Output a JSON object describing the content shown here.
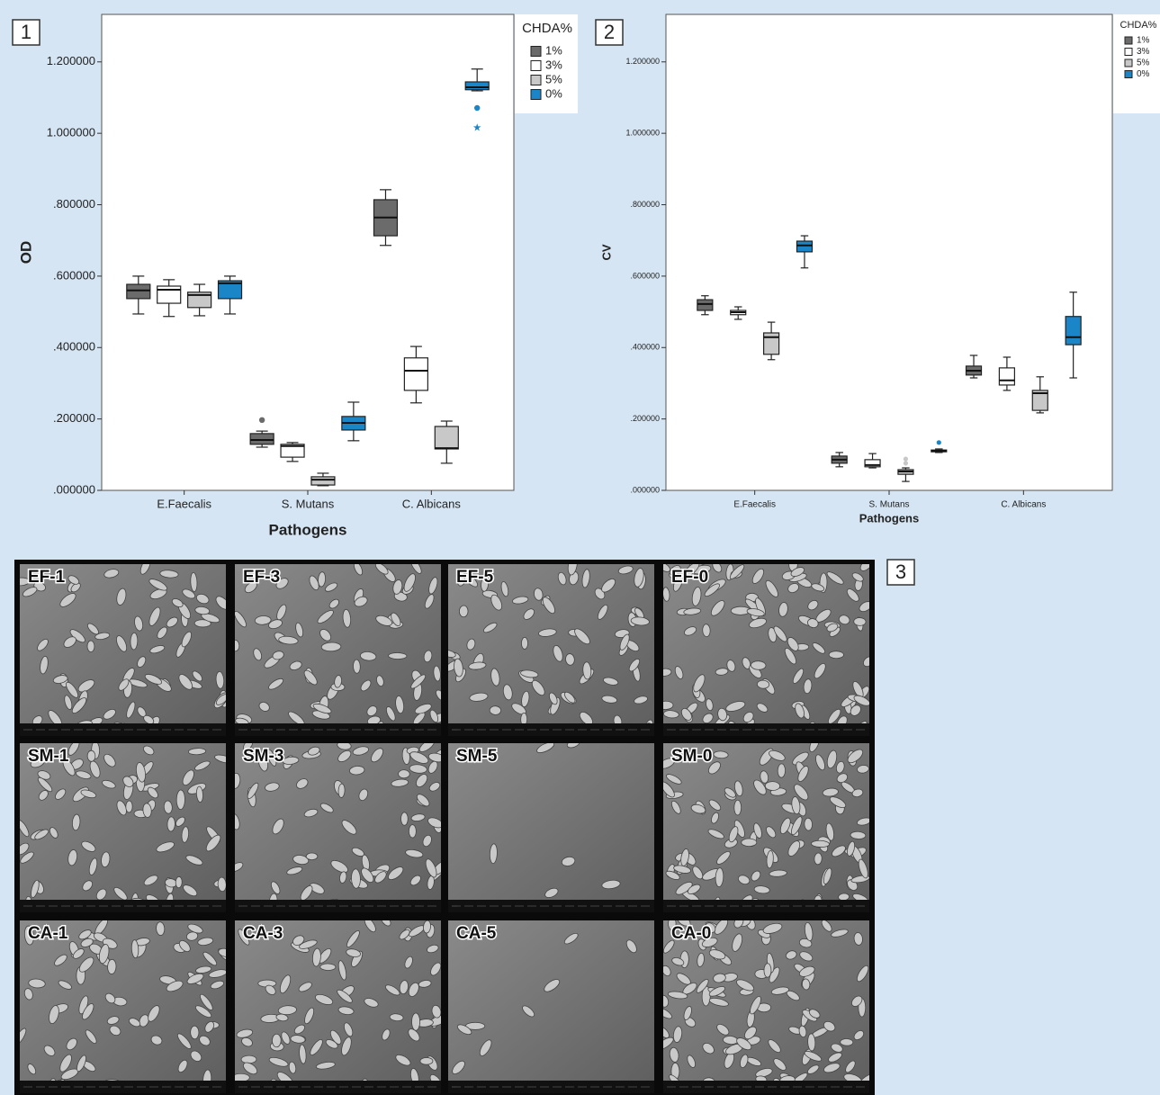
{
  "panels": [
    "1",
    "2",
    "3"
  ],
  "chart_data": [
    {
      "type": "box",
      "y_label": "OD",
      "x_label": "Pathogens",
      "legend_title": "CHDA%",
      "categories": [
        "E.Faecalis",
        "S. Mutans",
        "C. Albicans"
      ],
      "ylim": [
        0,
        1.333
      ],
      "yticks": [
        {
          "value": 0,
          "label": ".000000"
        },
        {
          "value": 0.2,
          "label": ".200000"
        },
        {
          "value": 0.4,
          "label": ".400000"
        },
        {
          "value": 0.6,
          "label": ".600000"
        },
        {
          "value": 0.8,
          "label": ".800000"
        },
        {
          "value": 1.0,
          "label": "1.000000"
        },
        {
          "value": 1.2,
          "label": "1.200000"
        }
      ],
      "series": [
        {
          "name": "1%",
          "color": "#6b6b6b",
          "boxes": [
            {
              "low": 0.494,
              "q1": 0.537,
              "median": 0.56,
              "q3": 0.577,
              "high": 0.6
            },
            {
              "low": 0.121,
              "q1": 0.129,
              "median": 0.141,
              "q3": 0.159,
              "high": 0.166,
              "outliers": [
                0.197
              ]
            },
            {
              "low": 0.686,
              "q1": 0.713,
              "median": 0.764,
              "q3": 0.814,
              "high": 0.842
            }
          ]
        },
        {
          "name": "3%",
          "color": "#ffffff",
          "boxes": [
            {
              "low": 0.487,
              "q1": 0.524,
              "median": 0.562,
              "q3": 0.572,
              "high": 0.59
            },
            {
              "low": 0.081,
              "q1": 0.093,
              "median": 0.124,
              "q3": 0.129,
              "high": 0.134
            },
            {
              "low": 0.245,
              "q1": 0.28,
              "median": 0.335,
              "q3": 0.371,
              "high": 0.403
            }
          ]
        },
        {
          "name": "5%",
          "color": "#c8c8c8",
          "boxes": [
            {
              "low": 0.489,
              "q1": 0.512,
              "median": 0.547,
              "q3": 0.555,
              "high": 0.577
            },
            {
              "low": 0.013,
              "q1": 0.015,
              "median": 0.03,
              "q3": 0.038,
              "high": 0.048
            },
            {
              "low": 0.076,
              "q1": 0.116,
              "median": 0.118,
              "q3": 0.179,
              "high": 0.194
            }
          ]
        },
        {
          "name": "0%",
          "color": "#1a86c8",
          "boxes": [
            {
              "low": 0.494,
              "q1": 0.537,
              "median": 0.58,
              "q3": 0.587,
              "high": 0.6
            },
            {
              "low": 0.139,
              "q1": 0.169,
              "median": 0.189,
              "q3": 0.207,
              "high": 0.247
            },
            {
              "low": 1.119,
              "q1": 1.122,
              "median": 1.129,
              "q3": 1.144,
              "high": 1.18,
              "outliers": [
                1.071
              ],
              "extremes": [
                1.016
              ]
            }
          ]
        }
      ]
    },
    {
      "type": "box",
      "y_label": "CV",
      "x_label": "Pathogens",
      "legend_title": "CHDA%",
      "categories": [
        "E.Faecalis",
        "S. Mutans",
        "C. Albicans"
      ],
      "ylim": [
        0,
        1.333
      ],
      "yticks": [
        {
          "value": 0,
          "label": ".000000"
        },
        {
          "value": 0.2,
          "label": ".200000"
        },
        {
          "value": 0.4,
          "label": ".400000"
        },
        {
          "value": 0.6,
          "label": ".600000"
        },
        {
          "value": 0.8,
          "label": ".800000"
        },
        {
          "value": 1.0,
          "label": "1.000000"
        },
        {
          "value": 1.2,
          "label": "1.200000"
        }
      ],
      "series": [
        {
          "name": "1%",
          "color": "#6b6b6b",
          "boxes": [
            {
              "low": 0.492,
              "q1": 0.504,
              "median": 0.522,
              "q3": 0.534,
              "high": 0.545
            },
            {
              "low": 0.066,
              "q1": 0.076,
              "median": 0.086,
              "q3": 0.096,
              "high": 0.106
            },
            {
              "low": 0.315,
              "q1": 0.323,
              "median": 0.335,
              "q3": 0.348,
              "high": 0.378
            }
          ]
        },
        {
          "name": "3%",
          "color": "#ffffff",
          "boxes": [
            {
              "low": 0.479,
              "q1": 0.492,
              "median": 0.499,
              "q3": 0.504,
              "high": 0.514
            },
            {
              "low": 0.063,
              "q1": 0.066,
              "median": 0.071,
              "q3": 0.086,
              "high": 0.103
            },
            {
              "low": 0.28,
              "q1": 0.295,
              "median": 0.308,
              "q3": 0.343,
              "high": 0.373
            }
          ]
        },
        {
          "name": "5%",
          "color": "#c8c8c8",
          "boxes": [
            {
              "low": 0.366,
              "q1": 0.381,
              "median": 0.429,
              "q3": 0.441,
              "high": 0.471
            },
            {
              "low": 0.025,
              "q1": 0.045,
              "median": 0.053,
              "q3": 0.058,
              "high": 0.063,
              "outliers": [
                0.076,
                0.088
              ]
            },
            {
              "low": 0.217,
              "q1": 0.224,
              "median": 0.272,
              "q3": 0.28,
              "high": 0.318
            }
          ]
        },
        {
          "name": "0%",
          "color": "#1a86c8",
          "boxes": [
            {
              "low": 0.623,
              "q1": 0.668,
              "median": 0.686,
              "q3": 0.698,
              "high": 0.713
            },
            {
              "low": 0.106,
              "q1": 0.108,
              "median": 0.111,
              "q3": 0.113,
              "high": 0.116,
              "outliers": [
                0.134
              ]
            },
            {
              "low": 0.315,
              "q1": 0.408,
              "median": 0.429,
              "q3": 0.487,
              "high": 0.555
            }
          ]
        }
      ]
    }
  ],
  "micrographs": [
    [
      "EF-1",
      "EF-3",
      "EF-5",
      "EF-0"
    ],
    [
      "SM-1",
      "SM-3",
      "SM-5",
      "SM-0"
    ],
    [
      "CA-1",
      "CA-3",
      "CA-5",
      "CA-0"
    ]
  ]
}
